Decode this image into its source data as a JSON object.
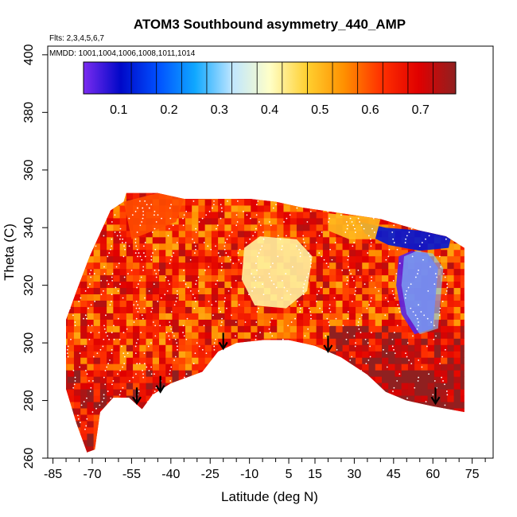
{
  "chart_data": {
    "type": "heatmap",
    "title": "ATOM3 Southbound asymmetry_440_AMP",
    "flights_note": "Flts: 2,3,4,5,6,7",
    "dates_note": "MMDD: 1001,1004,1006,1008,1011,1014",
    "xlabel": "Latitude (deg N)",
    "ylabel": "Theta (C)",
    "xlim": [
      -87,
      83
    ],
    "ylim": [
      260,
      403
    ],
    "x_ticks": [
      -85,
      -70,
      -55,
      -40,
      -25,
      -10,
      5,
      15,
      30,
      45,
      60,
      75
    ],
    "y_ticks": [
      260,
      280,
      300,
      320,
      340,
      360,
      380,
      400
    ],
    "colorbar": {
      "range": [
        0.03,
        0.77
      ],
      "ticks": [
        0.1,
        0.2,
        0.3,
        0.4,
        0.5,
        0.6,
        0.7
      ],
      "colors": [
        "#7b2cf0",
        "#0008c8",
        "#0050ff",
        "#10a8ff",
        "#bfe6ff",
        "#ffffc8",
        "#ffd030",
        "#ff9000",
        "#ff3000",
        "#e00000",
        "#902020"
      ]
    },
    "tropopause_arrows": [
      {
        "lat": -53,
        "theta": 279
      },
      {
        "lat": -44,
        "theta": 283
      },
      {
        "lat": -20,
        "theta": 298
      },
      {
        "lat": 20,
        "theta": 297
      },
      {
        "lat": 61,
        "theta": 279
      }
    ],
    "field": {
      "upper_bound": [
        [
          -80,
          308
        ],
        [
          -76,
          318
        ],
        [
          -71,
          330
        ],
        [
          -63,
          346
        ],
        [
          -58,
          349
        ],
        [
          -57,
          352
        ],
        [
          -45,
          352
        ],
        [
          -35,
          350
        ],
        [
          -20,
          350
        ],
        [
          -10,
          350
        ],
        [
          0,
          349
        ],
        [
          10,
          347
        ],
        [
          25,
          345
        ],
        [
          40,
          343
        ],
        [
          55,
          339
        ],
        [
          65,
          337
        ],
        [
          72,
          333
        ]
      ],
      "lower_bound": [
        [
          -80,
          284
        ],
        [
          -76,
          272
        ],
        [
          -72,
          262
        ],
        [
          -69,
          263
        ],
        [
          -67,
          276
        ],
        [
          -62,
          281
        ],
        [
          -56,
          281
        ],
        [
          -51,
          277
        ],
        [
          -47,
          282
        ],
        [
          -40,
          286
        ],
        [
          -28,
          290
        ],
        [
          -22,
          297
        ],
        [
          -15,
          300
        ],
        [
          -5,
          301
        ],
        [
          5,
          301
        ],
        [
          15,
          299
        ],
        [
          25,
          295
        ],
        [
          35,
          289
        ],
        [
          42,
          283
        ],
        [
          50,
          280
        ],
        [
          60,
          278
        ],
        [
          72,
          276
        ]
      ],
      "regions": [
        {
          "name": "tropical-minimum",
          "polygon": [
            [
              -12,
              333
            ],
            [
              -6,
              337
            ],
            [
              8,
              336
            ],
            [
              14,
              330
            ],
            [
              12,
              318
            ],
            [
              4,
              312
            ],
            [
              -8,
              313
            ],
            [
              -13,
              322
            ]
          ],
          "value": 0.42
        },
        {
          "name": "northern-minimum",
          "polygon": [
            [
              32,
              342
            ],
            [
              42,
              340
            ],
            [
              55,
              339
            ],
            [
              67,
              337
            ],
            [
              66,
              333
            ],
            [
              55,
              332
            ],
            [
              43,
              334
            ],
            [
              34,
              338
            ]
          ],
          "value": 0.12
        },
        {
          "name": "northern-column-minimum",
          "polygon": [
            [
              47,
              330
            ],
            [
              52,
              332
            ],
            [
              58,
              331
            ],
            [
              62,
              326
            ],
            [
              60,
              305
            ],
            [
              53,
              303
            ],
            [
              48,
              310
            ],
            [
              46,
              320
            ]
          ],
          "value": 0.05
        },
        {
          "name": "southern-transition",
          "polygon": [
            [
              -58,
              349
            ],
            [
              -45,
              352
            ],
            [
              -35,
              350
            ],
            [
              -38,
              342
            ],
            [
              -55,
              336
            ]
          ],
          "value": 0.6
        },
        {
          "name": "northern-edge-transition",
          "polygon": [
            [
              20,
              345
            ],
            [
              30,
              344
            ],
            [
              40,
              343
            ],
            [
              38,
              336
            ],
            [
              28,
              336
            ],
            [
              20,
              339
            ]
          ],
          "value": 0.5
        }
      ],
      "background_value": 0.63
    }
  }
}
